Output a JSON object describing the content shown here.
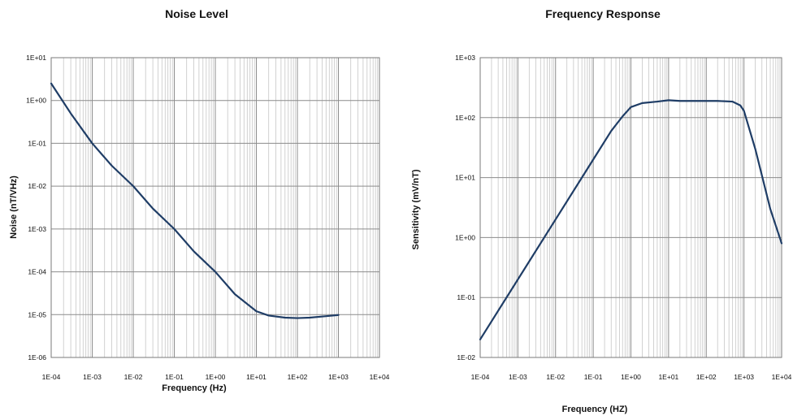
{
  "chart_data": [
    {
      "type": "line",
      "title": "Noise Level",
      "xlabel": "Frequency  (Hz)",
      "ylabel": "Noise  (nT/VHz)",
      "xscale": "log",
      "yscale": "log",
      "xlim": [
        0.0001,
        10000
      ],
      "ylim": [
        1e-06,
        10
      ],
      "grid": true,
      "legend": "none",
      "xticks": [
        "1E-04",
        "1E-03",
        "1E-02",
        "1E-01",
        "1E+00",
        "1E+01",
        "1E+02",
        "1E+03",
        "1E+04"
      ],
      "yticks": [
        "1E+01",
        "1E+00",
        "1E-01",
        "1E-02",
        "1E-03",
        "1E-04",
        "1E-05",
        "1E-06"
      ],
      "series": [
        {
          "color": "#1f3d66",
          "x": [
            0.0001,
            0.0003,
            0.001,
            0.003,
            0.01,
            0.03,
            0.1,
            0.3,
            1,
            3,
            10,
            20,
            50,
            100,
            200,
            500,
            1000
          ],
          "y": [
            2.5,
            0.5,
            0.1,
            0.03,
            0.01,
            0.003,
            0.001,
            0.0003,
            0.0001,
            3e-05,
            1.2e-05,
            9.5e-06,
            8.5e-06,
            8.3e-06,
            8.5e-06,
            9.2e-06,
            9.8e-06
          ]
        }
      ]
    },
    {
      "type": "line",
      "title": "Frequency Response",
      "xlabel": "Frequency (HZ)",
      "ylabel": "Sensitivity  (mV/nT)",
      "xscale": "log",
      "yscale": "log",
      "xlim": [
        0.0001,
        10000
      ],
      "ylim": [
        0.01,
        1000
      ],
      "grid": true,
      "legend": "none",
      "xticks": [
        "1E-04",
        "1E-03",
        "1E-02",
        "1E-01",
        "1E+00",
        "1E+01",
        "1E+02",
        "1E+03",
        "1E+04"
      ],
      "yticks": [
        "1E+03",
        "1E+02",
        "1E+01",
        "1E+00",
        "1E-01",
        "1E-02"
      ],
      "series": [
        {
          "color": "#1f3d66",
          "x": [
            0.0001,
            0.001,
            0.01,
            0.1,
            0.3,
            0.6,
            1,
            2,
            5,
            10,
            20,
            50,
            100,
            200,
            500,
            800,
            1000,
            2000,
            5000,
            10000
          ],
          "y": [
            0.02,
            0.2,
            2,
            20,
            60,
            105,
            150,
            175,
            185,
            195,
            190,
            190,
            190,
            190,
            185,
            160,
            130,
            30,
            3,
            0.8
          ]
        }
      ]
    }
  ]
}
